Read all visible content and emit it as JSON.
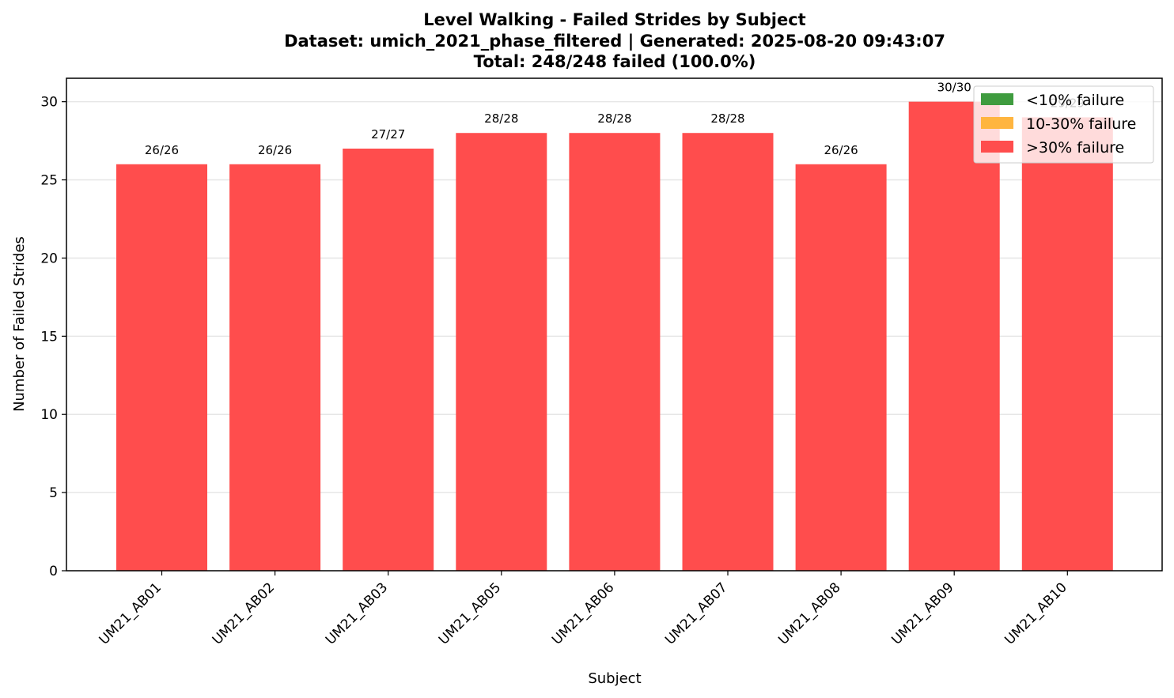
{
  "chart_data": {
    "type": "bar",
    "title_lines": [
      "Level Walking - Failed Strides by Subject",
      "Dataset: umich_2021_phase_filtered | Generated: 2025-08-20 09:43:07",
      "Total: 248/248 failed (100.0%)"
    ],
    "xlabel": "Subject",
    "ylabel": "Number of Failed Strides",
    "ylim": [
      0,
      31.5
    ],
    "yticks": [
      0,
      5,
      10,
      15,
      20,
      25,
      30
    ],
    "ygrid": true,
    "categories": [
      "UM21_AB01",
      "UM21_AB02",
      "UM21_AB03",
      "UM21_AB05",
      "UM21_AB06",
      "UM21_AB07",
      "UM21_AB08",
      "UM21_AB09",
      "UM21_AB10"
    ],
    "values": [
      26,
      26,
      27,
      28,
      28,
      28,
      26,
      30,
      29
    ],
    "totals": [
      26,
      26,
      27,
      28,
      28,
      28,
      26,
      30,
      29
    ],
    "bar_labels": [
      "26/26",
      "26/26",
      "27/27",
      "28/28",
      "28/28",
      "28/28",
      "26/26",
      "30/30",
      "29/29"
    ],
    "bar_color": "#ff4d4d",
    "legend": {
      "placement": "top-right",
      "entries": [
        {
          "label": "<10% failure",
          "color": "#3f9c3f"
        },
        {
          "label": "10-30% failure",
          "color": "#ffb53f"
        },
        {
          "label": ">30% failure",
          "color": "#ff4d4d"
        }
      ]
    }
  }
}
